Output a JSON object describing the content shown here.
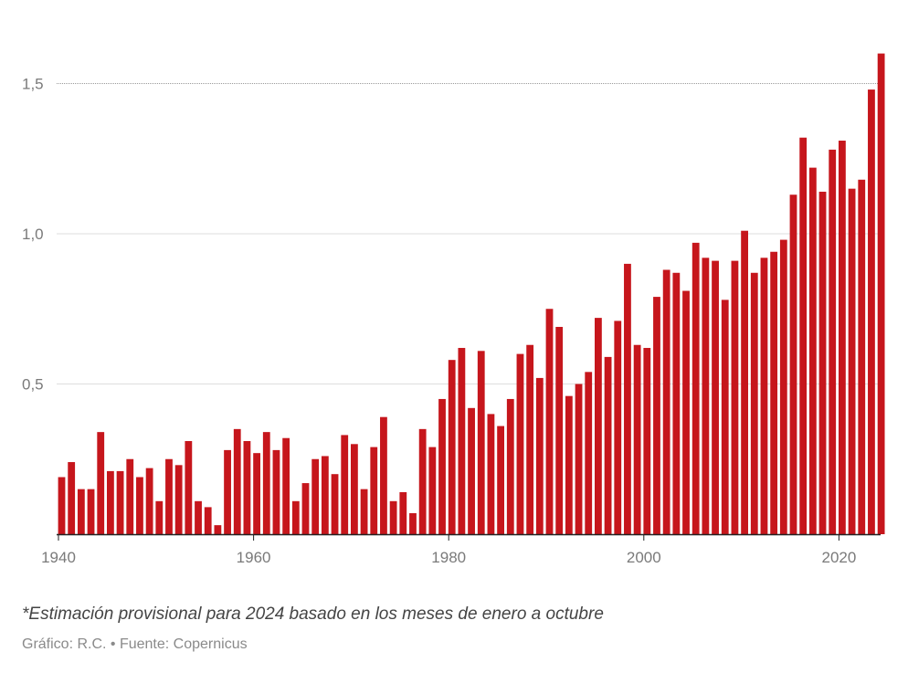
{
  "chart_data": {
    "type": "bar",
    "x": [
      1940,
      1941,
      1942,
      1943,
      1944,
      1945,
      1946,
      1947,
      1948,
      1949,
      1950,
      1951,
      1952,
      1953,
      1954,
      1955,
      1956,
      1957,
      1958,
      1959,
      1960,
      1961,
      1962,
      1963,
      1964,
      1965,
      1966,
      1967,
      1968,
      1969,
      1970,
      1971,
      1972,
      1973,
      1974,
      1975,
      1976,
      1977,
      1978,
      1979,
      1980,
      1981,
      1982,
      1983,
      1984,
      1985,
      1986,
      1987,
      1988,
      1989,
      1990,
      1991,
      1992,
      1993,
      1994,
      1995,
      1996,
      1997,
      1998,
      1999,
      2000,
      2001,
      2002,
      2003,
      2004,
      2005,
      2006,
      2007,
      2008,
      2009,
      2010,
      2011,
      2012,
      2013,
      2014,
      2015,
      2016,
      2017,
      2018,
      2019,
      2020,
      2021,
      2022,
      2023,
      2024
    ],
    "values": [
      0.19,
      0.24,
      0.15,
      0.15,
      0.34,
      0.21,
      0.21,
      0.25,
      0.19,
      0.22,
      0.11,
      0.25,
      0.23,
      0.31,
      0.11,
      0.09,
      0.03,
      0.28,
      0.35,
      0.31,
      0.27,
      0.34,
      0.28,
      0.32,
      0.11,
      0.17,
      0.25,
      0.26,
      0.2,
      0.33,
      0.3,
      0.15,
      0.29,
      0.39,
      0.11,
      0.14,
      0.07,
      0.35,
      0.29,
      0.45,
      0.58,
      0.62,
      0.42,
      0.61,
      0.4,
      0.36,
      0.45,
      0.6,
      0.63,
      0.52,
      0.75,
      0.69,
      0.46,
      0.5,
      0.54,
      0.72,
      0.59,
      0.71,
      0.9,
      0.63,
      0.62,
      0.79,
      0.88,
      0.87,
      0.81,
      0.97,
      0.92,
      0.91,
      0.78,
      0.91,
      1.01,
      0.87,
      0.92,
      0.94,
      0.98,
      1.13,
      1.32,
      1.22,
      1.14,
      1.28,
      1.31,
      1.15,
      1.18,
      1.48,
      1.6
    ],
    "bar_color": "#c6161c",
    "ylim": [
      0,
      1.65
    ],
    "y_ticks": [
      {
        "value": 0.5,
        "label": "0,5"
      },
      {
        "value": 1.0,
        "label": "1,0"
      },
      {
        "value": 1.5,
        "label": "1,5"
      }
    ],
    "x_ticks": [
      {
        "value": 1940,
        "label": "1940"
      },
      {
        "value": 1960,
        "label": "1960"
      },
      {
        "value": 1980,
        "label": "1980"
      },
      {
        "value": 2000,
        "label": "2000"
      },
      {
        "value": 2020,
        "label": "2020"
      }
    ],
    "grid": true,
    "title": "",
    "xlabel": "",
    "ylabel": ""
  },
  "footnote": "*Estimación provisional para 2024 basado en los meses de enero a octubre",
  "source": "Gráfico: R.C. • Fuente: Copernicus"
}
